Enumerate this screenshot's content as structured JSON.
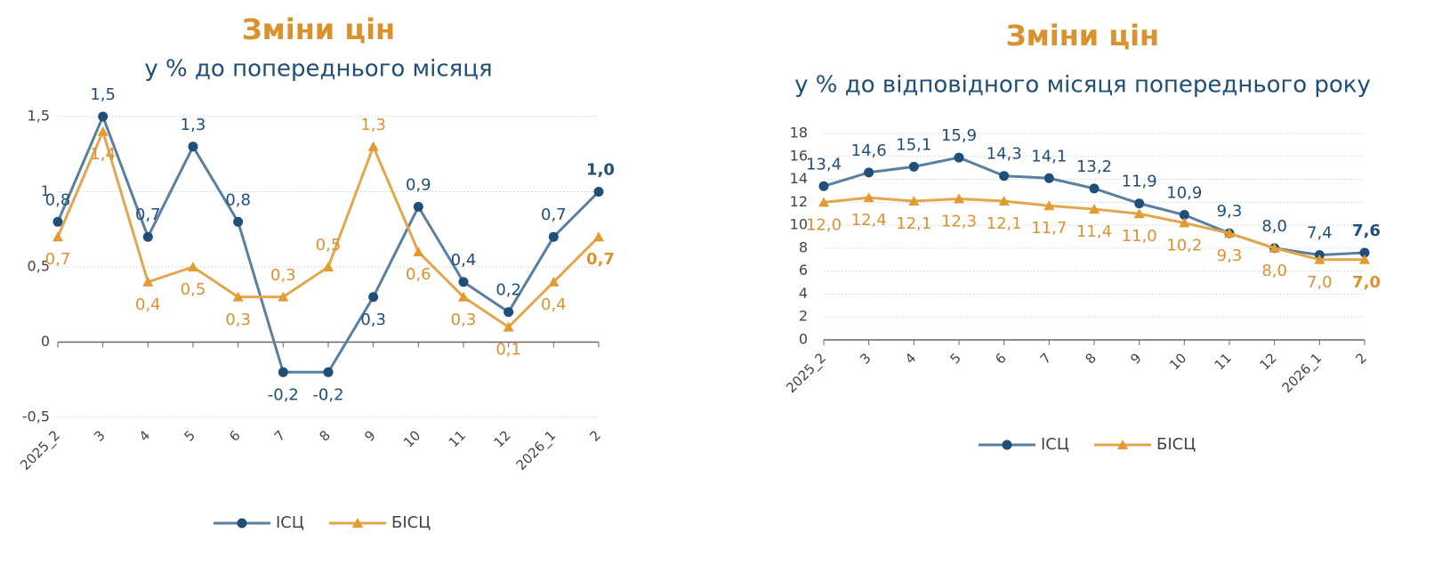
{
  "chart_data": [
    {
      "type": "line",
      "title": "Зміни цін",
      "subtitle": "у % до попереднього місяця",
      "categories": [
        "2025_2",
        "3",
        "4",
        "5",
        "6",
        "7",
        "8",
        "9",
        "10",
        "11",
        "12",
        "2026_1",
        "2"
      ],
      "series": [
        {
          "name": "ІСЦ",
          "color": "#5b7f9f",
          "marker_color": "#1f4e79",
          "marker": "circle",
          "values": [
            0.8,
            1.5,
            0.7,
            1.3,
            0.8,
            -0.2,
            -0.2,
            0.3,
            0.9,
            0.4,
            0.2,
            0.7,
            1.0
          ],
          "value_labels": [
            "0,8",
            "1,5",
            "0,7",
            "1,3",
            "0,8",
            "-0,2",
            "-0,2",
            "0,3",
            "0,9",
            "0,4",
            "0,2",
            "0,7",
            "1,0"
          ]
        },
        {
          "name": "БІСЦ",
          "color": "#e3a64c",
          "marker_color": "#e39a2e",
          "marker": "triangle",
          "values": [
            0.7,
            1.4,
            0.4,
            0.5,
            0.3,
            0.3,
            0.5,
            1.3,
            0.6,
            0.3,
            0.1,
            0.4,
            0.7
          ],
          "value_labels": [
            "0,7",
            "1,4",
            "0,4",
            "0,5",
            "0,3",
            "0,3",
            "0,5",
            "1,3",
            "0,6",
            "0,3",
            "0,1",
            "0,4",
            "0,7"
          ]
        }
      ],
      "ylim": [
        -0.5,
        1.5
      ],
      "yticks": [
        {
          "value": -0.5,
          "label": "-0,5"
        },
        0,
        {
          "value": 0.5,
          "label": "0,5"
        },
        1,
        {
          "value": 1.5,
          "label": "1,5"
        }
      ],
      "grid": true,
      "legend": "bottom"
    },
    {
      "type": "line",
      "title": "Зміни цін",
      "subtitle": "у % до відповідного місяця попереднього року",
      "categories": [
        "2025_2",
        "3",
        "4",
        "5",
        "6",
        "7",
        "8",
        "9",
        "10",
        "11",
        "12",
        "2026_1",
        "2"
      ],
      "series": [
        {
          "name": "ІСЦ",
          "color": "#5b7f9f",
          "marker_color": "#1f4e79",
          "marker": "circle",
          "values": [
            13.4,
            14.6,
            15.1,
            15.9,
            14.3,
            14.1,
            13.2,
            11.9,
            10.9,
            9.3,
            8.0,
            7.4,
            7.6
          ],
          "value_labels": [
            "13,4",
            "14,6",
            "15,1",
            "15,9",
            "14,3",
            "14,1",
            "13,2",
            "11,9",
            "10,9",
            "9,3",
            "8,0",
            "7,4",
            "7,6"
          ]
        },
        {
          "name": "БІСЦ",
          "color": "#e3a64c",
          "marker_color": "#e39a2e",
          "marker": "triangle",
          "values": [
            12.0,
            12.4,
            12.1,
            12.3,
            12.1,
            11.7,
            11.4,
            11.0,
            10.2,
            9.3,
            8.0,
            7.0,
            7.0
          ],
          "value_labels": [
            "12,0",
            "12,4",
            "12,1",
            "12,3",
            "12,1",
            "11,7",
            "11,4",
            "11,0",
            "10,2",
            "9,3",
            "8,0",
            "7,0",
            "7,0"
          ]
        }
      ],
      "ylim": [
        0,
        18
      ],
      "yticks": [
        0,
        2,
        4,
        6,
        8,
        10,
        12,
        14,
        16,
        18
      ],
      "grid": true,
      "legend": "bottom"
    }
  ]
}
